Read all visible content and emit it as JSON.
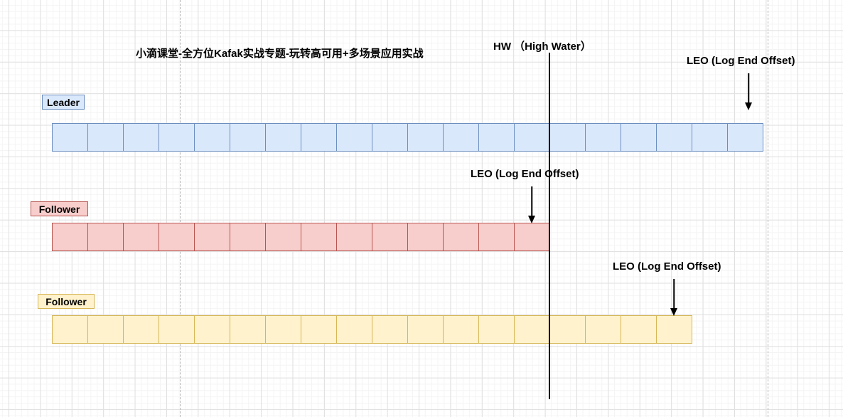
{
  "title": "小滴课堂-全方位Kafak实战专题-玩转高可用+多场景应用实战",
  "hw_marker": {
    "label": "HW （High Water）"
  },
  "leo_markers": [
    {
      "label": "LEO (Log End Offset)",
      "points_to": "Leader"
    },
    {
      "label": "LEO (Log End Offset)",
      "points_to": "Follower"
    },
    {
      "label": "LEO (Log End Offset)",
      "points_to": "Follower"
    }
  ],
  "partitions": [
    {
      "role": "Leader",
      "segments": 20,
      "fill": "#dae8fc",
      "stroke": "#6c8ebf"
    },
    {
      "role": "Follower",
      "segments": 14,
      "fill": "#f8cecc",
      "stroke": "#b85450"
    },
    {
      "role": "Follower",
      "segments": 18,
      "fill": "#fff2cc",
      "stroke": "#d6b656"
    }
  ]
}
